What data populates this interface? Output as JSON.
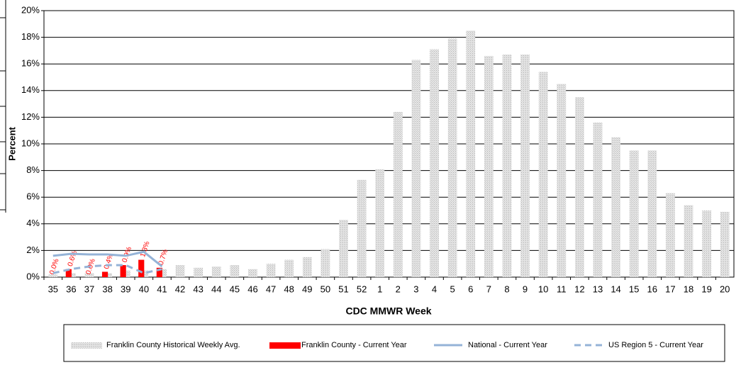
{
  "chart_data": {
    "type": "bar",
    "y_label": "Percent",
    "x_label": "CDC MMWR Week",
    "categories": [
      "35",
      "36",
      "37",
      "38",
      "39",
      "40",
      "41",
      "42",
      "43",
      "44",
      "45",
      "46",
      "47",
      "48",
      "49",
      "50",
      "51",
      "52",
      "1",
      "2",
      "3",
      "4",
      "5",
      "6",
      "7",
      "8",
      "9",
      "10",
      "11",
      "12",
      "13",
      "14",
      "15",
      "16",
      "17",
      "18",
      "19",
      "20"
    ],
    "series": [
      {
        "name": "Franklin County Historical Weekly Avg.",
        "type": "bar",
        "color": "#d9d9d9",
        "values": [
          0.2,
          0.3,
          0.3,
          0.3,
          0.5,
          0.5,
          0.6,
          0.9,
          0.7,
          0.8,
          0.9,
          0.6,
          1.0,
          1.3,
          1.5,
          2.1,
          4.3,
          7.3,
          8.1,
          12.4,
          16.3,
          17.1,
          17.9,
          18.5,
          16.6,
          16.7,
          16.7,
          15.4,
          14.5,
          13.5,
          11.6,
          10.5,
          9.5,
          9.5,
          6.3,
          5.4,
          5.0,
          4.9
        ]
      },
      {
        "name": "Franklin County - Current Year",
        "type": "bar",
        "color": "#ff0000",
        "values": [
          0.0,
          0.6,
          0.0,
          0.4,
          0.9,
          1.3,
          0.7,
          null,
          null,
          null,
          null,
          null,
          null,
          null,
          null,
          null,
          null,
          null,
          null,
          null,
          null,
          null,
          null,
          null,
          null,
          null,
          null,
          null,
          null,
          null,
          null,
          null,
          null,
          null,
          null,
          null,
          null,
          null
        ],
        "value_labels": [
          "0.0%",
          "0.6%",
          "0.0%",
          "0.4%",
          "0.9%",
          "1.3%",
          "0.7%",
          null,
          null,
          null,
          null,
          null,
          null,
          null,
          null,
          null,
          null,
          null,
          null,
          null,
          null,
          null,
          null,
          null,
          null,
          null,
          null,
          null,
          null,
          null,
          null,
          null,
          null,
          null,
          null,
          null,
          null,
          null
        ]
      },
      {
        "name": "National - Current Year",
        "type": "line",
        "color": "#95b3d7",
        "dashed": false,
        "values": [
          1.6,
          1.75,
          1.7,
          1.7,
          1.6,
          1.9,
          0.8,
          null,
          null,
          null,
          null,
          null,
          null,
          null,
          null,
          null,
          null,
          null,
          null,
          null,
          null,
          null,
          null,
          null,
          null,
          null,
          null,
          null,
          null,
          null,
          null,
          null,
          null,
          null,
          null,
          null,
          null,
          null
        ]
      },
      {
        "name": "US Region 5 - Current Year",
        "type": "line",
        "color": "#95b3d7",
        "dashed": true,
        "values": [
          0.3,
          0.6,
          0.8,
          0.9,
          0.9,
          0.3,
          0.6,
          null,
          null,
          null,
          null,
          null,
          null,
          null,
          null,
          null,
          null,
          null,
          null,
          null,
          null,
          null,
          null,
          null,
          null,
          null,
          null,
          null,
          null,
          null,
          null,
          null,
          null,
          null,
          null,
          null,
          null,
          null
        ]
      }
    ],
    "ylim": [
      0,
      20
    ],
    "yticks": [
      {
        "value": 0,
        "label": "0%"
      },
      {
        "value": 2,
        "label": "2%"
      },
      {
        "value": 4,
        "label": "4%"
      },
      {
        "value": 6,
        "label": "6%"
      },
      {
        "value": 8,
        "label": "8%"
      },
      {
        "value": 10,
        "label": "10%"
      },
      {
        "value": 12,
        "label": "12%"
      },
      {
        "value": 14,
        "label": "14%"
      },
      {
        "value": 16,
        "label": "16%"
      },
      {
        "value": 18,
        "label": "18%"
      },
      {
        "value": 20,
        "label": "20%"
      }
    ],
    "grid": true
  }
}
